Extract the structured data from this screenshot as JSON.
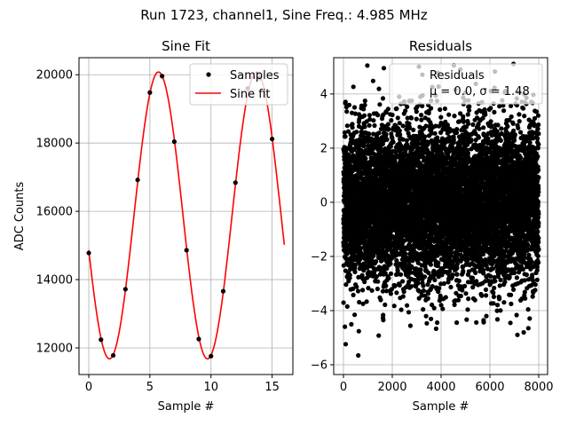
{
  "suptitle": "Run 1723, channel1, Sine Freq.: 4.985 MHz",
  "chart_data": [
    {
      "type": "line",
      "title": "Sine Fit",
      "xlabel": "Sample #",
      "ylabel": "ADC Counts",
      "xlim": [
        -0.8,
        16.7
      ],
      "ylim": [
        11220,
        20500
      ],
      "xticks": [
        0,
        5,
        10,
        15
      ],
      "yticks": [
        12000,
        14000,
        16000,
        18000,
        20000
      ],
      "grid": true,
      "legend": {
        "placement": "top-right",
        "entries": [
          "Samples",
          "Sine fit"
        ]
      },
      "series": [
        {
          "name": "Samples",
          "kind": "scatter",
          "color": "#000000",
          "x": [
            0,
            1,
            2,
            3,
            4,
            5,
            6,
            7,
            8,
            9,
            10,
            11,
            12,
            13,
            14,
            15
          ],
          "y": [
            14780,
            12240,
            11780,
            13720,
            16920,
            19480,
            19960,
            18040,
            14860,
            12260,
            11760,
            13660,
            16840,
            19600,
            19900,
            18120
          ]
        },
        {
          "name": "Sine fit",
          "kind": "line",
          "color": "#ff0000",
          "model": {
            "offset": 15880,
            "amplitude": 4200,
            "period_samples": 8.024,
            "phase_sample": 3.7,
            "x_range": [
              0,
              16
            ]
          }
        }
      ]
    },
    {
      "type": "scatter",
      "title": "Residuals",
      "xlabel": "Sample #",
      "ylabel": "",
      "xlim": [
        -400,
        8364
      ],
      "ylim": [
        -6.36,
        5.34
      ],
      "xticks": [
        0,
        2000,
        4000,
        6000,
        8000
      ],
      "yticks": [
        -6,
        -4,
        -2,
        0,
        2,
        4
      ],
      "grid": true,
      "legend": {
        "placement": "top-right",
        "entries": [
          "Residuals",
          "μ = 0.0, σ = 1.48"
        ]
      },
      "series": [
        {
          "name": "Residuals",
          "color": "#000000",
          "n_points": 8000,
          "x_range": [
            0,
            7999
          ],
          "mu": 0.0,
          "sigma": 1.48
        }
      ]
    }
  ]
}
